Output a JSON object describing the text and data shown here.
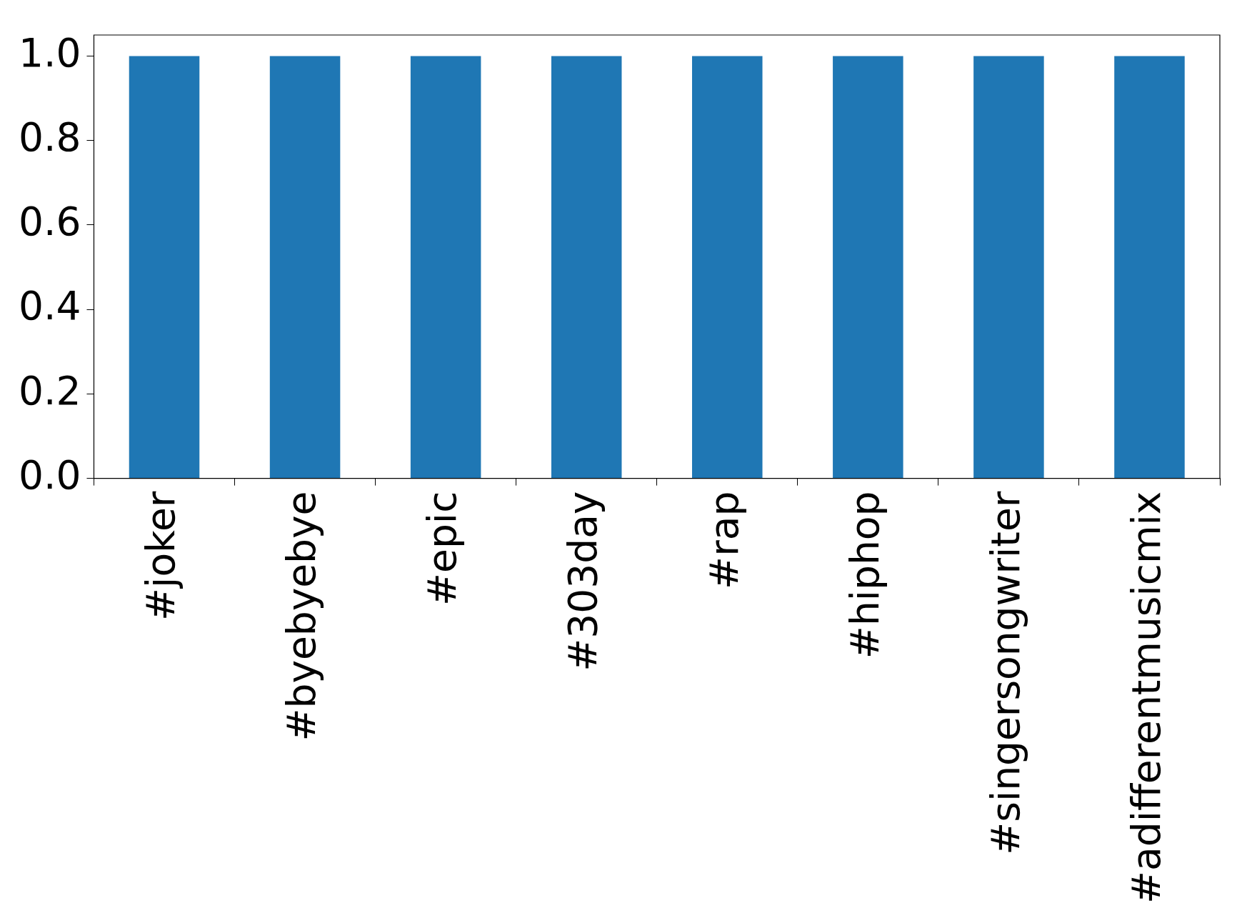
{
  "chart_data": {
    "type": "bar",
    "categories": [
      "#joker",
      "#byebyebye",
      "#epic",
      "#303day",
      "#rap",
      "#hiphop",
      "#singersongwriter",
      "#adifferentmusicmix"
    ],
    "values": [
      1,
      1,
      1,
      1,
      1,
      1,
      1,
      1
    ],
    "color": "#1f77b4",
    "ylim": [
      0,
      1.05
    ],
    "yticks": [
      {
        "value": 0,
        "label": "0.0"
      },
      {
        "value": 0.2,
        "label": "0.2"
      },
      {
        "value": 0.4,
        "label": "0.4"
      },
      {
        "value": 0.6,
        "label": "0.6"
      },
      {
        "value": 0.8,
        "label": "0.8"
      },
      {
        "value": 1,
        "label": "1.0"
      }
    ],
    "grid": false,
    "legend": false
  }
}
